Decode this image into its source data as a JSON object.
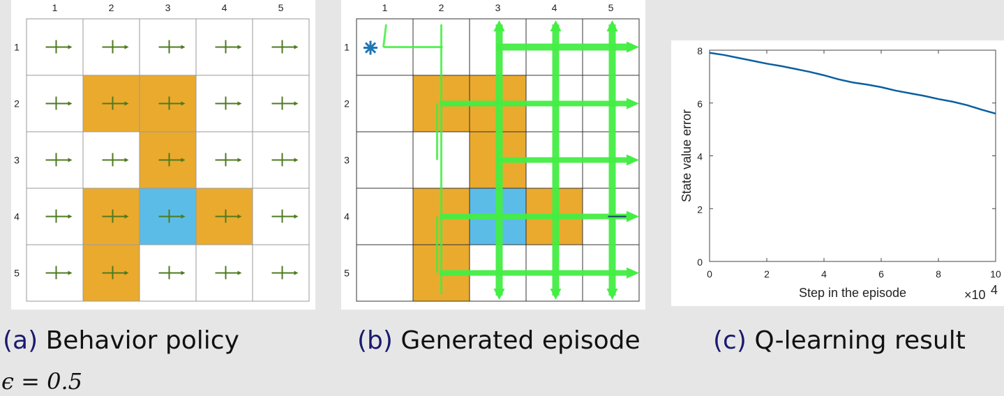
{
  "grid": {
    "col_labels": [
      "1",
      "2",
      "3",
      "4",
      "5"
    ],
    "row_labels": [
      "1",
      "2",
      "3",
      "4",
      "5"
    ],
    "rows": 5,
    "cols": 5,
    "forbidden_cells": [
      [
        2,
        2
      ],
      [
        2,
        3
      ],
      [
        3,
        3
      ],
      [
        4,
        2
      ],
      [
        4,
        4
      ],
      [
        5,
        2
      ]
    ],
    "target_cell": [
      4,
      3
    ],
    "colors": {
      "forbidden": "#eaaa2e",
      "target": "#5bbce8",
      "grid_line": "#555555",
      "policy_arrow": "#4d7a1f",
      "episode": "#44ee44",
      "start_marker": "#1f77b4"
    }
  },
  "panel_a": {
    "caption_tag": "(a)",
    "caption_text": "Behavior policy",
    "arrow_icon": "cross-arrows-icon"
  },
  "panel_b": {
    "caption_tag": "(b)",
    "caption_text": "Generated episode",
    "start_cell": [
      1,
      1
    ],
    "start_marker_icon": "asterisk-icon"
  },
  "panel_c": {
    "caption_tag": "(c)",
    "caption_text": "Q-learning result"
  },
  "epsilon_text": "ϵ = 0.5",
  "chart_data": {
    "type": "line",
    "title": "",
    "xlabel": "Step in the episode",
    "ylabel": "State value error",
    "x_multiplier": "×10",
    "x_multiplier_exp": "4",
    "xlim": [
      0,
      10
    ],
    "ylim": [
      0,
      8
    ],
    "xticks": [
      0,
      2,
      4,
      6,
      8,
      10
    ],
    "yticks": [
      0,
      2,
      4,
      6,
      8
    ],
    "line_color": "#0a5fa0",
    "series": [
      {
        "x": [
          0,
          0.5,
          1,
          1.5,
          2,
          2.5,
          3,
          3.5,
          4,
          4.5,
          5,
          5.5,
          6,
          6.5,
          7,
          7.5,
          8,
          8.5,
          9,
          9.5,
          10
        ],
        "values": [
          7.9,
          7.82,
          7.71,
          7.6,
          7.49,
          7.4,
          7.29,
          7.18,
          7.05,
          6.9,
          6.78,
          6.7,
          6.6,
          6.47,
          6.37,
          6.27,
          6.15,
          6.05,
          5.92,
          5.75,
          5.6
        ]
      }
    ]
  }
}
